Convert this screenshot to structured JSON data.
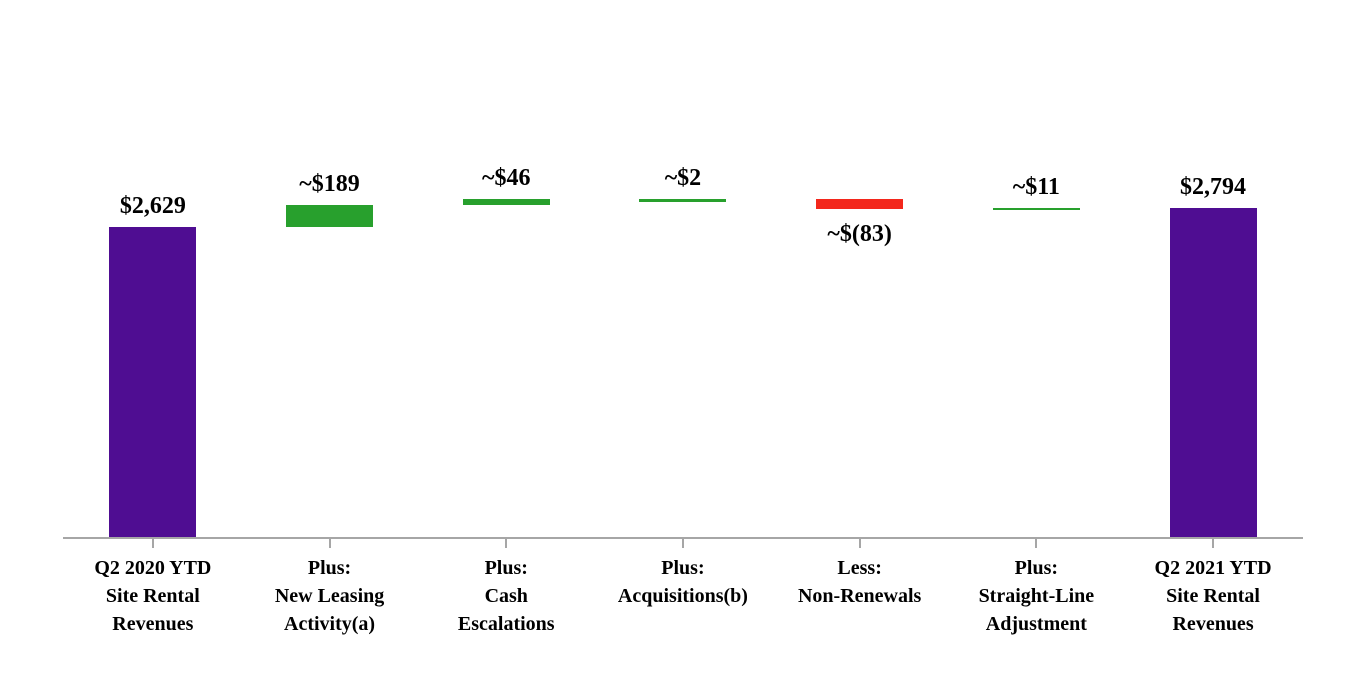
{
  "chart_data": {
    "type": "bar",
    "subtype": "waterfall",
    "title": "",
    "xlabel": "",
    "ylabel": "",
    "ylim": [
      0,
      2900
    ],
    "grid": false,
    "legend": false,
    "units": "USD millions",
    "start_total": 2629,
    "end_total": 2794,
    "categories": [
      {
        "label_lines": [
          "Q2 2020 YTD",
          "Site Rental",
          "Revenues"
        ],
        "kind": "total",
        "value": 2629,
        "value_label": "$2,629",
        "value_label_position": "above"
      },
      {
        "label_lines": [
          "Plus:",
          "New Leasing",
          "Activity(a)"
        ],
        "kind": "delta",
        "value": 189,
        "value_label": "~$189",
        "value_label_position": "above"
      },
      {
        "label_lines": [
          "Plus:",
          "Cash",
          "Escalations"
        ],
        "kind": "delta",
        "value": 46,
        "value_label": "~$46",
        "value_label_position": "above"
      },
      {
        "label_lines": [
          "Plus:",
          "Acquisitions(b)"
        ],
        "kind": "delta",
        "value": 2,
        "value_label": "~$2",
        "value_label_position": "above"
      },
      {
        "label_lines": [
          "Less:",
          "Non-Renewals"
        ],
        "kind": "delta",
        "value": -83,
        "value_label": "~$(83)",
        "value_label_position": "below"
      },
      {
        "label_lines": [
          "Plus:",
          "Straight-Line",
          "Adjustment"
        ],
        "kind": "delta",
        "value": 11,
        "value_label": "~$11",
        "value_label_position": "above"
      },
      {
        "label_lines": [
          "Q2 2021 YTD",
          "Site Rental",
          "Revenues"
        ],
        "kind": "total",
        "value": 2794,
        "value_label": "$2,794",
        "value_label_position": "above"
      }
    ],
    "colors": {
      "total": "#4f0d92",
      "increase": "#28a02d",
      "decrease": "#f3271c",
      "axis": "#a6a6a6",
      "label_text": "#000000"
    }
  }
}
